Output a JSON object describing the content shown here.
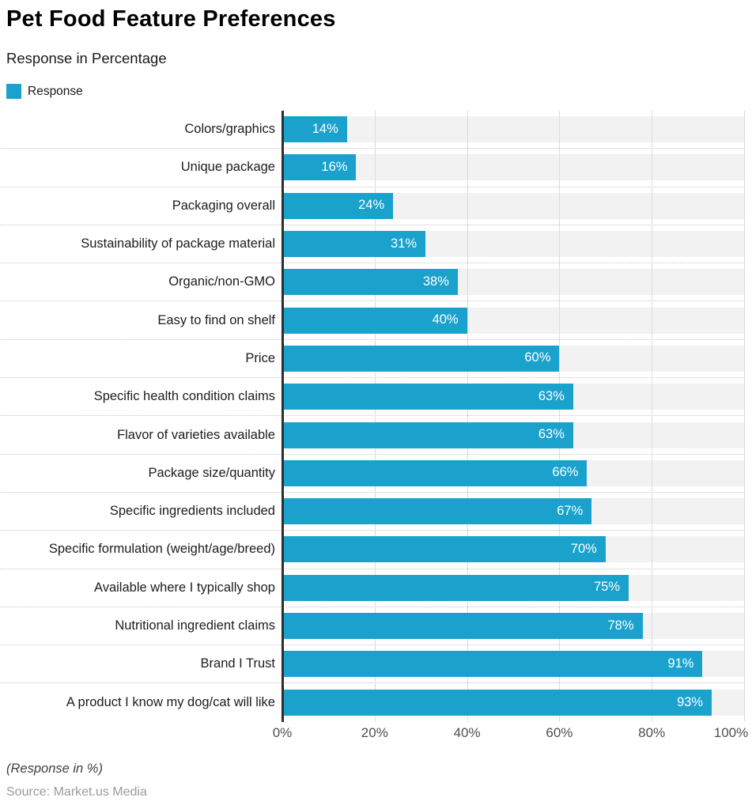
{
  "header": {
    "title": "Pet Food Feature Preferences",
    "subtitle": "Response in Percentage"
  },
  "legend": {
    "label": "Response",
    "color": "#1aa2cd"
  },
  "chart_data": {
    "type": "bar",
    "orientation": "horizontal",
    "title": "Pet Food Feature Preferences",
    "subtitle": "Response in Percentage",
    "series_name": "Response",
    "categories": [
      "Colors/graphics",
      "Unique package",
      "Packaging overall",
      "Sustainability of package material",
      "Organic/non-GMO",
      "Easy to find on shelf",
      "Price",
      "Specific health condition claims",
      "Flavor of varieties available",
      "Package size/quantity",
      "Specific ingredients included",
      "Specific formulation (weight/age/breed)",
      "Available where I typically shop",
      "Nutritional ingredient claims",
      "Brand I Trust",
      "A product I know my dog/cat will like"
    ],
    "values": [
      14,
      16,
      24,
      31,
      38,
      40,
      60,
      63,
      63,
      66,
      67,
      70,
      75,
      78,
      91,
      93
    ],
    "value_labels": [
      "14%",
      "16%",
      "24%",
      "31%",
      "38%",
      "40%",
      "60%",
      "63%",
      "63%",
      "66%",
      "67%",
      "70%",
      "75%",
      "78%",
      "91%",
      "93%"
    ],
    "x_ticks": [
      "0%",
      "20%",
      "40%",
      "60%",
      "80%",
      "100%"
    ],
    "x_tick_values": [
      0,
      20,
      40,
      60,
      80,
      100
    ],
    "xlim": [
      0,
      100
    ],
    "xlabel": "",
    "ylabel": "",
    "bar_color": "#1aa2cd",
    "track_color": "#f2f2f2",
    "grid": true,
    "legend_position": "top-left"
  },
  "footer": {
    "note": "(Response in %)",
    "source": "Source: Market.us Media"
  }
}
